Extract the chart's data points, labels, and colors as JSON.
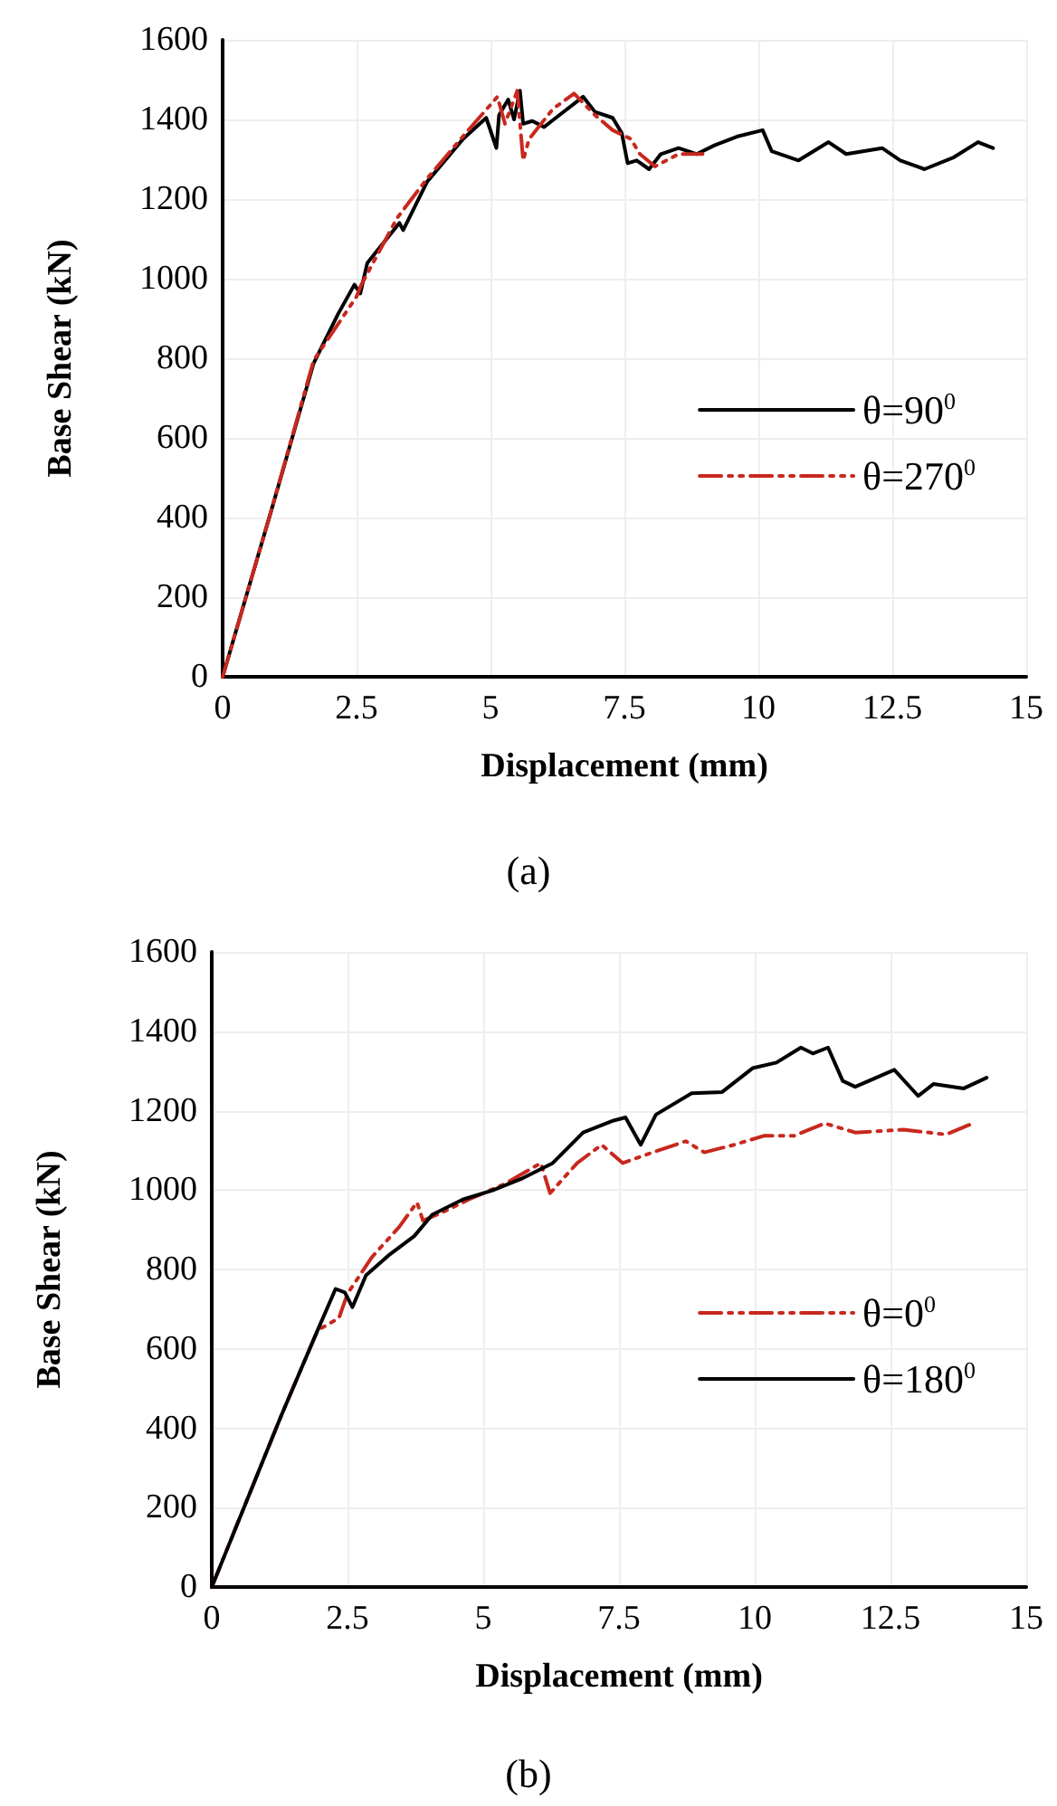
{
  "chart_data": [
    {
      "type": "line",
      "title": "(a)",
      "xlabel": "Displacement (mm)",
      "ylabel": "Base Shear (kN)",
      "xlim": [
        0,
        15
      ],
      "xticks": [
        0,
        2.5,
        5,
        7.5,
        10,
        12.5,
        15
      ],
      "ylim": [
        0,
        1600
      ],
      "yticks": [
        0,
        200,
        400,
        600,
        800,
        1000,
        1200,
        1400,
        1600
      ],
      "grid": true,
      "legend": "right",
      "marker": "none",
      "series": [
        {
          "name": "θ=90$^{0}$",
          "color": "#000000",
          "line_style": "solid",
          "x": [
            0,
            0.92,
            1.7,
            2.15,
            2.46,
            2.57,
            2.7,
            3.3,
            3.37,
            3.82,
            4.49,
            4.92,
            5.11,
            5.16,
            5.33,
            5.44,
            5.55,
            5.61,
            5.78,
            6.0,
            6.22,
            6.73,
            6.95,
            7.28,
            7.45,
            7.56,
            7.73,
            7.96,
            8.18,
            8.51,
            8.85,
            9.18,
            9.63,
            10.08,
            10.25,
            10.75,
            11.31,
            11.64,
            12.31,
            12.65,
            13.1,
            13.65,
            14.1,
            14.38
          ],
          "values": [
            0,
            423,
            788,
            910,
            985,
            963,
            1039,
            1140,
            1122,
            1244,
            1351,
            1404,
            1328,
            1411,
            1450,
            1400,
            1472,
            1389,
            1396,
            1381,
            1404,
            1457,
            1419,
            1404,
            1366,
            1290,
            1297,
            1275,
            1313,
            1328,
            1313,
            1335,
            1358,
            1373,
            1320,
            1297,
            1343,
            1313,
            1328,
            1297,
            1275,
            1305,
            1343,
            1328
          ]
        },
        {
          "name": "θ=270$^{0}$",
          "color": "#c8281e",
          "line_style": "dashed",
          "x": [
            0,
            0.92,
            1.7,
            2.5,
            2.59,
            3.26,
            3.82,
            4.49,
            5.13,
            5.27,
            5.5,
            5.61,
            5.72,
            6.17,
            6.56,
            6.95,
            7.28,
            7.62,
            7.79,
            8.07,
            8.51,
            8.96
          ],
          "values": [
            0,
            423,
            795,
            955,
            985,
            1153,
            1252,
            1358,
            1457,
            1389,
            1472,
            1297,
            1351,
            1427,
            1465,
            1411,
            1373,
            1351,
            1313,
            1282,
            1313,
            1313
          ]
        }
      ]
    },
    {
      "type": "line",
      "title": "(b)",
      "xlabel": "Displacement (mm)",
      "ylabel": "Base Shear (kN)",
      "xlim": [
        0,
        15
      ],
      "xticks": [
        0,
        2.5,
        5,
        7.5,
        10,
        12.5,
        15
      ],
      "ylim": [
        0,
        1600
      ],
      "yticks": [
        0,
        200,
        400,
        600,
        800,
        1000,
        1200,
        1400,
        1600
      ],
      "grid": true,
      "legend": "right",
      "marker": "none",
      "series": [
        {
          "name": "θ=0$^{0}$",
          "color": "#c8281e",
          "line_style": "dashed",
          "x": [
            0,
            1.28,
            1.95,
            2.34,
            2.5,
            2.95,
            3.45,
            3.78,
            3.89,
            4.28,
            4.73,
            5.39,
            6.06,
            6.23,
            6.73,
            7.18,
            7.57,
            8.06,
            8.73,
            9.07,
            9.62,
            10.18,
            10.73,
            11.29,
            11.85,
            12.74,
            13.52,
            14.02
          ],
          "values": [
            0,
            432,
            647,
            677,
            739,
            831,
            907,
            969,
            923,
            946,
            976,
            1015,
            1068,
            992,
            1068,
            1114,
            1068,
            1092,
            1123,
            1095,
            1114,
            1137,
            1137,
            1168,
            1145,
            1152,
            1140,
            1168
          ]
        },
        {
          "name": "θ=180$^{0}$",
          "color": "#000000",
          "line_style": "solid",
          "x": [
            0,
            1.28,
            1.95,
            2.28,
            2.45,
            2.59,
            2.84,
            3.28,
            3.73,
            4.06,
            4.62,
            5.17,
            5.73,
            6.28,
            6.84,
            7.4,
            7.62,
            7.9,
            8.18,
            8.84,
            9.4,
            9.96,
            10.4,
            10.85,
            11.07,
            11.35,
            11.62,
            11.85,
            12.57,
            13.01,
            13.29,
            13.85,
            14.27
          ],
          "values": [
            0,
            432,
            647,
            751,
            742,
            705,
            785,
            838,
            884,
            938,
            976,
            999,
            1030,
            1068,
            1145,
            1175,
            1183,
            1114,
            1190,
            1244,
            1247,
            1307,
            1321,
            1359,
            1344,
            1359,
            1275,
            1260,
            1303,
            1237,
            1267,
            1256,
            1283
          ]
        }
      ]
    }
  ]
}
